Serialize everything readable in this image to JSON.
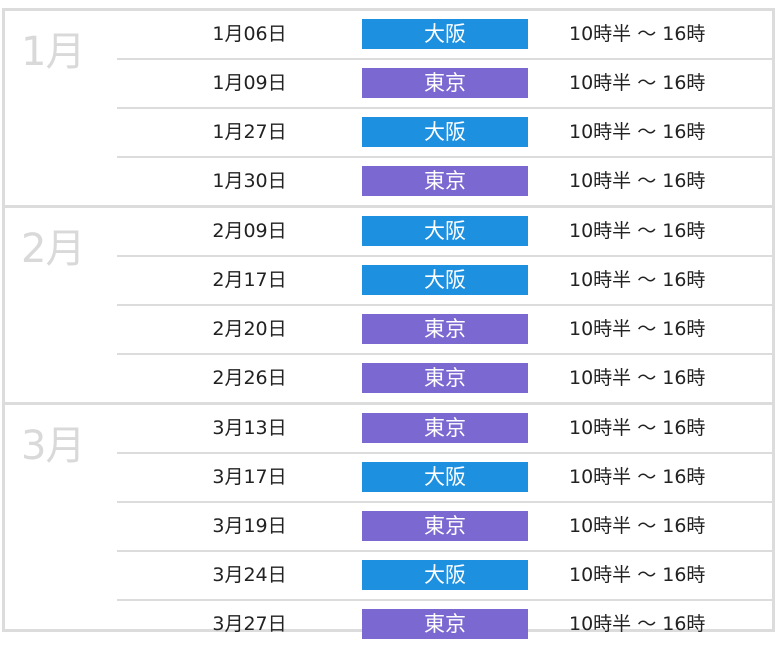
{
  "colors": {
    "osaka": "#1e90e0",
    "tokyo": "#7b68d0",
    "border": "#dcdcdc",
    "month_label": "#d9d9d9"
  },
  "months": [
    {
      "label": "1月",
      "rows": [
        {
          "date": "1月06日",
          "city": "大阪",
          "city_key": "osaka",
          "time": "10時半 ～ 16時"
        },
        {
          "date": "1月09日",
          "city": "東京",
          "city_key": "tokyo",
          "time": "10時半 ～ 16時"
        },
        {
          "date": "1月27日",
          "city": "大阪",
          "city_key": "osaka",
          "time": "10時半 ～ 16時"
        },
        {
          "date": "1月30日",
          "city": "東京",
          "city_key": "tokyo",
          "time": "10時半 ～ 16時"
        }
      ]
    },
    {
      "label": "2月",
      "rows": [
        {
          "date": "2月09日",
          "city": "大阪",
          "city_key": "osaka",
          "time": "10時半 ～ 16時"
        },
        {
          "date": "2月17日",
          "city": "大阪",
          "city_key": "osaka",
          "time": "10時半 ～ 16時"
        },
        {
          "date": "2月20日",
          "city": "東京",
          "city_key": "tokyo",
          "time": "10時半 ～ 16時"
        },
        {
          "date": "2月26日",
          "city": "東京",
          "city_key": "tokyo",
          "time": "10時半 ～ 16時"
        }
      ]
    },
    {
      "label": "3月",
      "rows": [
        {
          "date": "3月13日",
          "city": "東京",
          "city_key": "tokyo",
          "time": "10時半 ～ 16時"
        },
        {
          "date": "3月17日",
          "city": "大阪",
          "city_key": "osaka",
          "time": "10時半 ～ 16時"
        },
        {
          "date": "3月19日",
          "city": "東京",
          "city_key": "tokyo",
          "time": "10時半 ～ 16時"
        },
        {
          "date": "3月24日",
          "city": "大阪",
          "city_key": "osaka",
          "time": "10時半 ～ 16時"
        },
        {
          "date": "3月27日",
          "city": "東京",
          "city_key": "tokyo",
          "time": "10時半 ～ 16時"
        }
      ]
    }
  ]
}
